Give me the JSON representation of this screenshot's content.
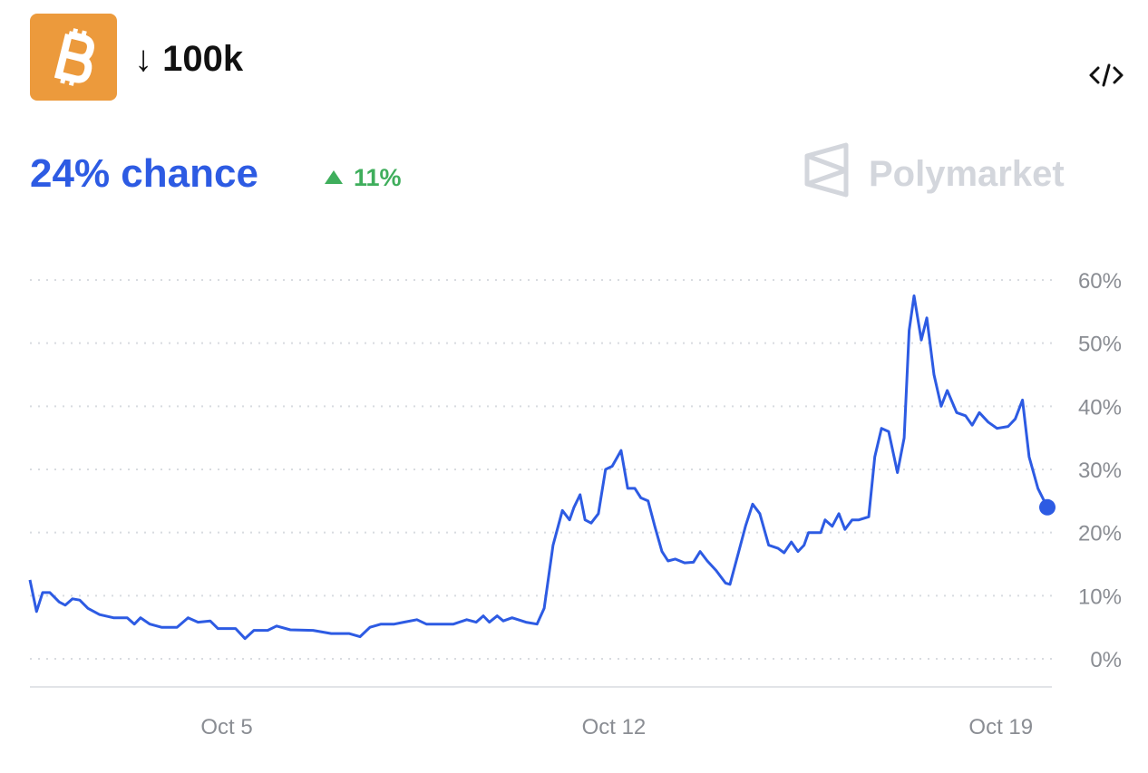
{
  "chart_data": {
    "type": "line",
    "title": "↓ 100k",
    "subtitle": "24% chance",
    "change": "11%",
    "brand": "Polymarket",
    "color": "#2d5be3",
    "change_color": "#3fae5c",
    "grid": true,
    "xlim": [
      1.44,
      19.84
    ],
    "xticks": [
      {
        "value": 5,
        "label": "Oct 5"
      },
      {
        "value": 12,
        "label": "Oct 12"
      },
      {
        "value": 19,
        "label": "Oct 19"
      }
    ],
    "ylim": [
      0,
      60
    ],
    "yticks": [
      {
        "value": 0,
        "label": "0%"
      },
      {
        "value": 10,
        "label": "10%"
      },
      {
        "value": 20,
        "label": "20%"
      },
      {
        "value": 30,
        "label": "30%"
      },
      {
        "value": 40,
        "label": "40%"
      },
      {
        "value": 50,
        "label": "50%"
      },
      {
        "value": 60,
        "label": "60%"
      }
    ],
    "x": [
      1.44,
      1.56,
      1.67,
      1.8,
      1.97,
      2.08,
      2.21,
      2.34,
      2.49,
      2.7,
      2.95,
      3.2,
      3.33,
      3.44,
      3.61,
      3.82,
      4.1,
      4.3,
      4.48,
      4.7,
      4.84,
      5.16,
      5.33,
      5.49,
      5.74,
      5.9,
      6.15,
      6.56,
      6.89,
      7.21,
      7.41,
      7.59,
      7.79,
      8.03,
      8.2,
      8.44,
      8.61,
      9.1,
      9.34,
      9.51,
      9.64,
      9.75,
      9.89,
      10.0,
      10.16,
      10.41,
      10.61,
      10.74,
      10.9,
      11.07,
      11.2,
      11.28,
      11.39,
      11.48,
      11.59,
      11.72,
      11.85,
      11.97,
      12.13,
      12.25,
      12.38,
      12.49,
      12.62,
      12.74,
      12.87,
      12.98,
      13.11,
      13.28,
      13.44,
      13.56,
      13.69,
      13.85,
      14.02,
      14.1,
      14.26,
      14.38,
      14.51,
      14.64,
      14.8,
      14.97,
      15.08,
      15.21,
      15.33,
      15.44,
      15.52,
      15.74,
      15.82,
      15.95,
      16.07,
      16.18,
      16.31,
      16.43,
      16.61,
      16.72,
      16.84,
      16.97,
      17.13,
      17.25,
      17.34,
      17.43,
      17.56,
      17.66,
      17.79,
      17.92,
      18.03,
      18.2,
      18.36,
      18.48,
      18.61,
      18.77,
      18.93,
      19.13,
      19.26,
      19.39,
      19.51,
      19.67,
      19.84
    ],
    "values": [
      12.5,
      7.5,
      10.5,
      10.5,
      9,
      8.5,
      9.5,
      9.3,
      8,
      7,
      6.5,
      6.5,
      5.5,
      6.5,
      5.5,
      5,
      5,
      6.5,
      5.8,
      6,
      4.8,
      4.8,
      3.2,
      4.5,
      4.5,
      5.2,
      4.6,
      4.5,
      4,
      4,
      3.5,
      5,
      5.5,
      5.5,
      5.8,
      6.2,
      5.5,
      5.5,
      6.2,
      5.8,
      6.8,
      5.8,
      6.8,
      6,
      6.5,
      5.8,
      5.5,
      8,
      18,
      23.5,
      22,
      24,
      26,
      22,
      21.5,
      23,
      30,
      30.5,
      33,
      27,
      27,
      25.5,
      25,
      21,
      17,
      15.5,
      15.8,
      15.2,
      15.3,
      17,
      15.5,
      14,
      12,
      11.8,
      17,
      21,
      24.5,
      23,
      18,
      17.5,
      16.8,
      18.5,
      17,
      18,
      20,
      20,
      22,
      21,
      23,
      20.5,
      22,
      22,
      22.5,
      32,
      36.5,
      36,
      29.5,
      35,
      52,
      57.5,
      50.5,
      54,
      45,
      40,
      42.5,
      39,
      38.5,
      37,
      39,
      37.5,
      36.5,
      36.8,
      38,
      41,
      32,
      27,
      24
    ]
  }
}
